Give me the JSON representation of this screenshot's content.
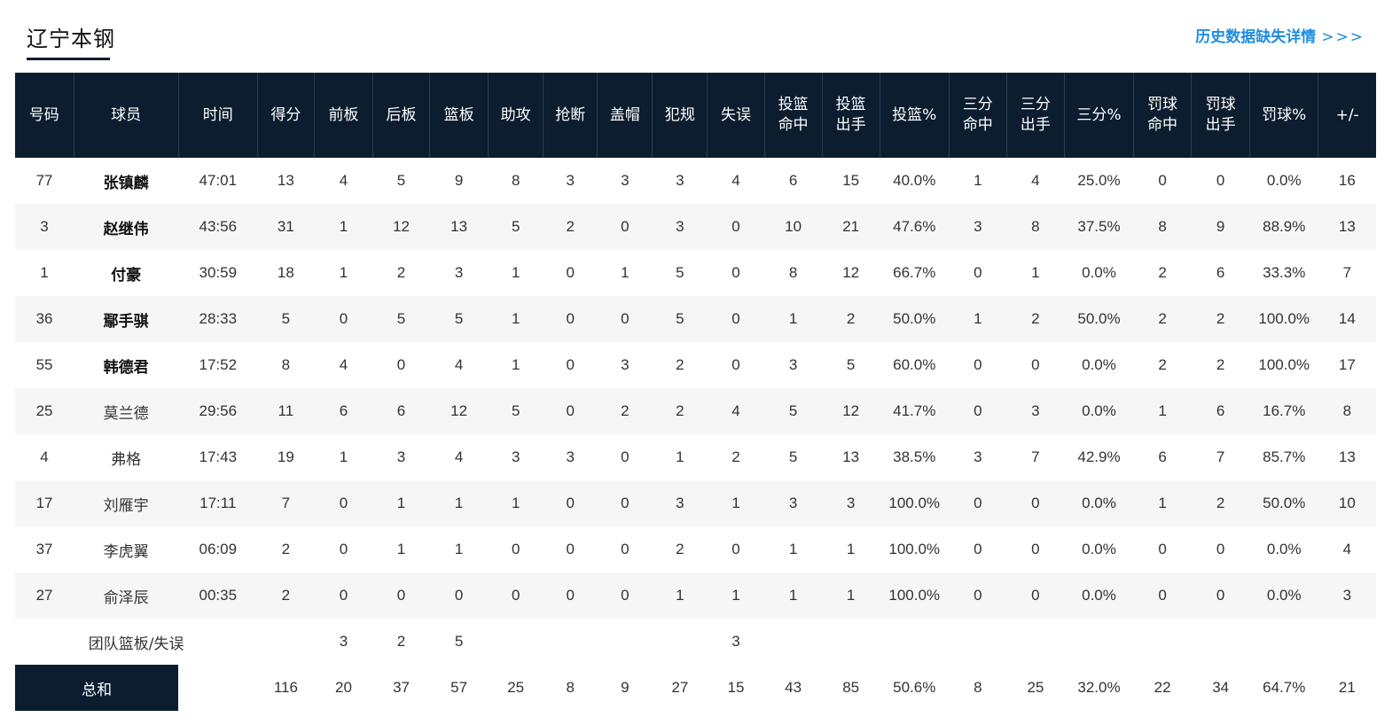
{
  "header": {
    "team_name": "辽宁本钢",
    "history_link": "历史数据缺失详情",
    "history_arrows": ">>>"
  },
  "colors": {
    "header_bg": "#0b1d2e",
    "link": "#1e8ce0"
  },
  "columns": [
    "号码",
    "球员",
    "时间",
    "得分",
    "前板",
    "后板",
    "篮板",
    "助攻",
    "抢断",
    "盖帽",
    "犯规",
    "失误",
    "投篮命中",
    "投篮出手",
    "投篮%",
    "三分命中",
    "三分出手",
    "三分%",
    "罚球命中",
    "罚球出手",
    "罚球%",
    "+/-"
  ],
  "columns_display": [
    [
      "号码"
    ],
    [
      "球员"
    ],
    [
      "时间"
    ],
    [
      "得分"
    ],
    [
      "前板"
    ],
    [
      "后板"
    ],
    [
      "篮板"
    ],
    [
      "助攻"
    ],
    [
      "抢断"
    ],
    [
      "盖帽"
    ],
    [
      "犯规"
    ],
    [
      "失误"
    ],
    [
      "投篮",
      "命中"
    ],
    [
      "投篮",
      "出手"
    ],
    [
      "投篮%"
    ],
    [
      "三分",
      "命中"
    ],
    [
      "三分",
      "出手"
    ],
    [
      "三分%"
    ],
    [
      "罚球",
      "命中"
    ],
    [
      "罚球",
      "出手"
    ],
    [
      "罚球%"
    ],
    [
      "+/-"
    ]
  ],
  "players": [
    {
      "starter": true,
      "row": [
        "77",
        "张镇麟",
        "47:01",
        "13",
        "4",
        "5",
        "9",
        "8",
        "3",
        "3",
        "3",
        "4",
        "6",
        "15",
        "40.0%",
        "1",
        "4",
        "25.0%",
        "0",
        "0",
        "0.0%",
        "16"
      ]
    },
    {
      "starter": true,
      "row": [
        "3",
        "赵继伟",
        "43:56",
        "31",
        "1",
        "12",
        "13",
        "5",
        "2",
        "0",
        "3",
        "0",
        "10",
        "21",
        "47.6%",
        "3",
        "8",
        "37.5%",
        "8",
        "9",
        "88.9%",
        "13"
      ]
    },
    {
      "starter": true,
      "row": [
        "1",
        "付豪",
        "30:59",
        "18",
        "1",
        "2",
        "3",
        "1",
        "0",
        "1",
        "5",
        "0",
        "8",
        "12",
        "66.7%",
        "0",
        "1",
        "0.0%",
        "2",
        "6",
        "33.3%",
        "7"
      ]
    },
    {
      "starter": true,
      "row": [
        "36",
        "鄢手骐",
        "28:33",
        "5",
        "0",
        "5",
        "5",
        "1",
        "0",
        "0",
        "5",
        "0",
        "1",
        "2",
        "50.0%",
        "1",
        "2",
        "50.0%",
        "2",
        "2",
        "100.0%",
        "14"
      ]
    },
    {
      "starter": true,
      "row": [
        "55",
        "韩德君",
        "17:52",
        "8",
        "4",
        "0",
        "4",
        "1",
        "0",
        "3",
        "2",
        "0",
        "3",
        "5",
        "60.0%",
        "0",
        "0",
        "0.0%",
        "2",
        "2",
        "100.0%",
        "17"
      ]
    },
    {
      "starter": false,
      "row": [
        "25",
        "莫兰德",
        "29:56",
        "11",
        "6",
        "6",
        "12",
        "5",
        "0",
        "2",
        "2",
        "4",
        "5",
        "12",
        "41.7%",
        "0",
        "3",
        "0.0%",
        "1",
        "6",
        "16.7%",
        "8"
      ]
    },
    {
      "starter": false,
      "row": [
        "4",
        "弗格",
        "17:43",
        "19",
        "1",
        "3",
        "4",
        "3",
        "3",
        "0",
        "1",
        "2",
        "5",
        "13",
        "38.5%",
        "3",
        "7",
        "42.9%",
        "6",
        "7",
        "85.7%",
        "13"
      ]
    },
    {
      "starter": false,
      "row": [
        "17",
        "刘雁宇",
        "17:11",
        "7",
        "0",
        "1",
        "1",
        "1",
        "0",
        "0",
        "3",
        "1",
        "3",
        "3",
        "100.0%",
        "0",
        "0",
        "0.0%",
        "1",
        "2",
        "50.0%",
        "10"
      ]
    },
    {
      "starter": false,
      "row": [
        "37",
        "李虎翼",
        "06:09",
        "2",
        "0",
        "1",
        "1",
        "0",
        "0",
        "0",
        "2",
        "0",
        "1",
        "1",
        "100.0%",
        "0",
        "0",
        "0.0%",
        "0",
        "0",
        "0.0%",
        "4"
      ]
    },
    {
      "starter": false,
      "row": [
        "27",
        "俞泽辰",
        "00:35",
        "2",
        "0",
        "0",
        "0",
        "0",
        "0",
        "0",
        "1",
        "1",
        "1",
        "1",
        "100.0%",
        "0",
        "0",
        "0.0%",
        "0",
        "0",
        "0.0%",
        "3"
      ]
    }
  ],
  "team_row": {
    "label": "团队篮板/失误",
    "front": "3",
    "back": "2",
    "reb": "5",
    "tov": "3"
  },
  "totals": {
    "label": "总和",
    "values": [
      "116",
      "20",
      "37",
      "57",
      "25",
      "8",
      "9",
      "27",
      "15",
      "43",
      "85",
      "50.6%",
      "8",
      "25",
      "32.0%",
      "22",
      "34",
      "64.7%",
      "21"
    ]
  }
}
